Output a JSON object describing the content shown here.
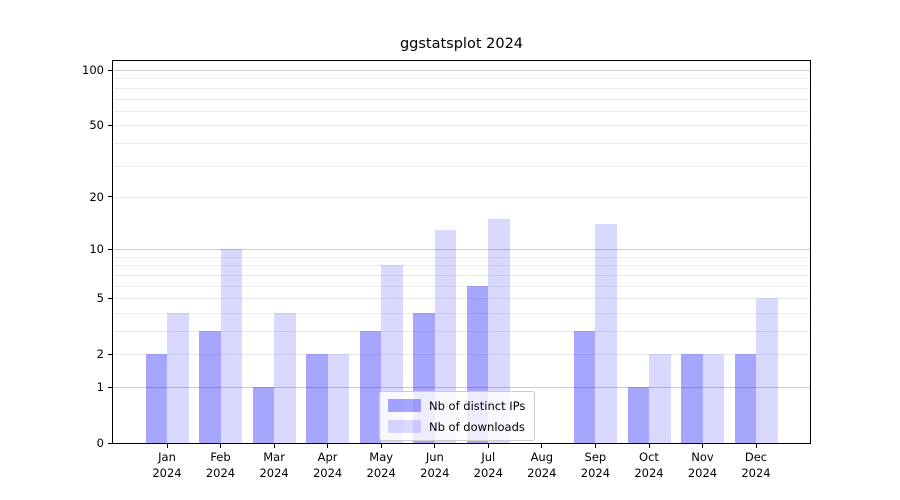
{
  "chart_data": {
    "type": "bar",
    "title": "ggstatsplot 2024",
    "categories": [
      "Jan 2024",
      "Feb 2024",
      "Mar 2024",
      "Apr 2024",
      "May 2024",
      "Jun 2024",
      "Jul 2024",
      "Aug 2024",
      "Sep 2024",
      "Oct 2024",
      "Nov 2024",
      "Dec 2024"
    ],
    "series": [
      {
        "name": "Nb of distinct IPs",
        "color": "rgba(0,0,255,0.35)",
        "values": [
          2,
          3,
          1,
          2,
          3,
          4,
          6,
          0,
          3,
          1,
          2,
          2
        ]
      },
      {
        "name": "Nb of downloads",
        "color": "rgba(0,0,255,0.15)",
        "values": [
          4,
          10,
          4,
          2,
          8,
          13,
          15,
          0,
          14,
          2,
          2,
          5
        ]
      }
    ],
    "yscale": "log1p",
    "ylim": [
      0,
      113
    ],
    "yticks": [
      "0",
      "1",
      "2",
      "5",
      "10",
      "20",
      "50",
      "100"
    ],
    "major_gridlines": [
      1,
      10,
      100
    ],
    "minor_gridlines": [
      2,
      3,
      4,
      5,
      6,
      7,
      8,
      9,
      20,
      30,
      40,
      50,
      60,
      70,
      80,
      90
    ],
    "legend_position": "inside-bottom-center",
    "grid": true,
    "colors": {
      "bar_distinct_ips_on_white": "#a6a6ff",
      "bar_downloads_on_white": "#d9d9ff",
      "major_grid": "#cccccc",
      "minor_grid": "#ebebeb",
      "axis": "#000000",
      "background": "#ffffff"
    }
  }
}
